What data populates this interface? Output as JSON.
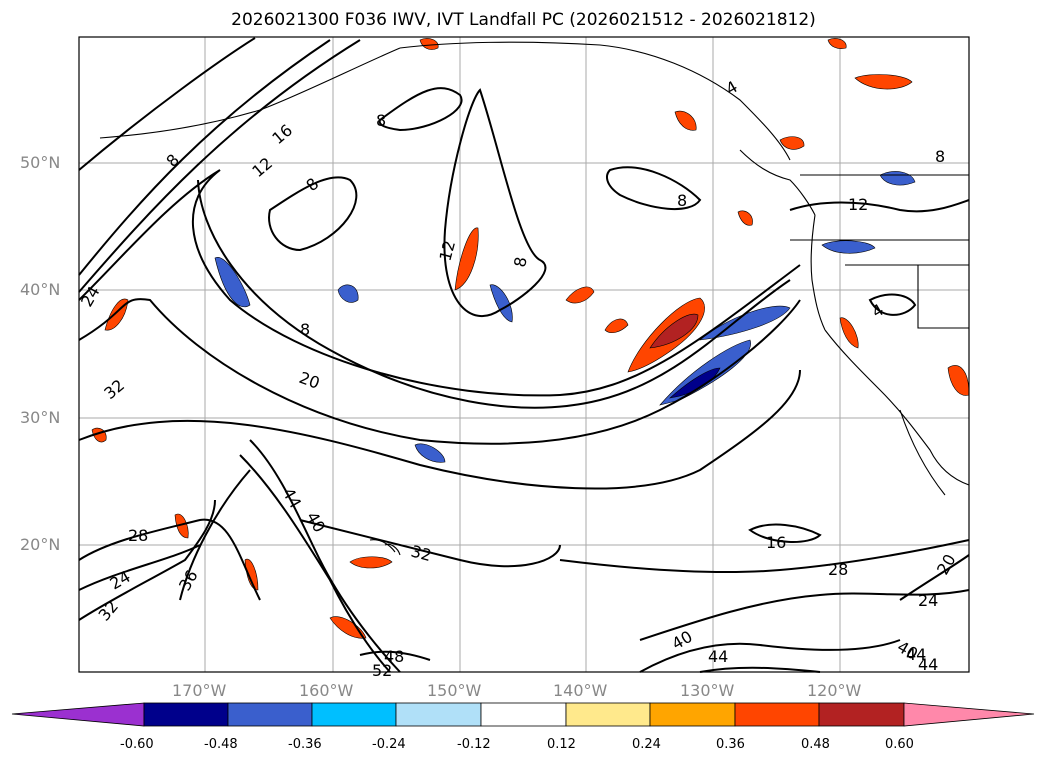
{
  "title": "2026021300 F036 IWV, IVT Landfall PC (2026021512 - 2026021812)",
  "lat_labels": [
    "50°N",
    "40°N",
    "30°N",
    "20°N"
  ],
  "lon_labels": [
    "170°W",
    "160°W",
    "150°W",
    "140°W",
    "130°W",
    "120°W"
  ],
  "contour_labels": [
    "8",
    "16",
    "12",
    "8",
    "8",
    "12",
    "8",
    "8",
    "8",
    "12",
    "4",
    "8",
    "4",
    "24",
    "32",
    "20",
    "16",
    "28",
    "28",
    "24",
    "36",
    "32",
    "44",
    "40",
    "32",
    "48",
    "52",
    "40",
    "44",
    "20",
    "24",
    "40",
    "44",
    "44"
  ],
  "colorbar": {
    "ticks": [
      "-0.60",
      "-0.48",
      "-0.36",
      "-0.24",
      "-0.12",
      "0.12",
      "0.24",
      "0.36",
      "0.48",
      "0.60"
    ],
    "colors": [
      "#9b30d0",
      "#00008b",
      "#3a5fcd",
      "#00bfff",
      "#b0e0f8",
      "#ffffff",
      "#ffe98c",
      "#ffa500",
      "#ff4500",
      "#b22222",
      "#ff88aa"
    ],
    "extend": "both"
  },
  "shading_colors": {
    "positive_low": "#ffa500",
    "positive_mid": "#ff4500",
    "positive_high": "#b22222",
    "negative_low": "#00bfff",
    "negative_mid": "#3a5fcd",
    "negative_high": "#00008b"
  }
}
